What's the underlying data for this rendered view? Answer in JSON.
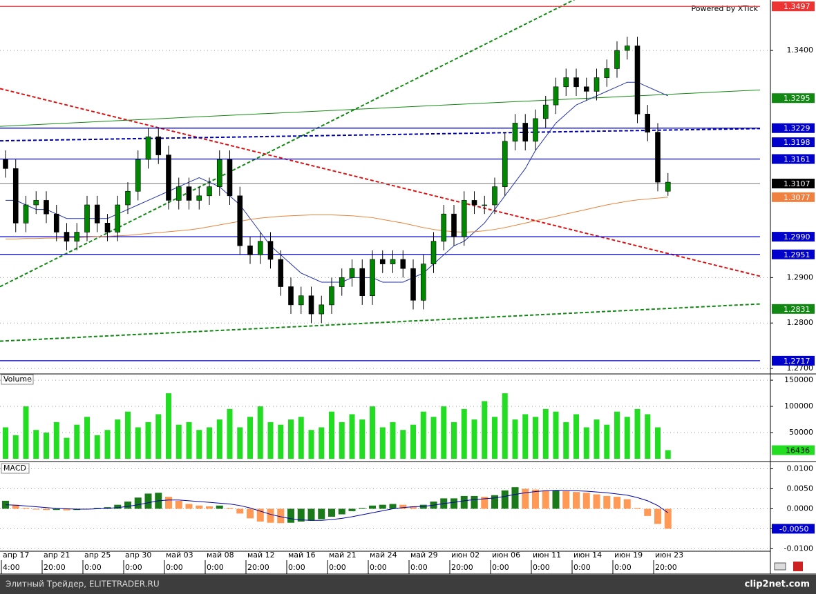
{
  "chart_data": [
    {
      "type": "candlestick",
      "watermark": "Powered by XTick",
      "ylim": [
        1.2691,
        1.3511
      ],
      "yticks": [
        {
          "value": 1.27,
          "label": "1.2700"
        },
        {
          "value": 1.28,
          "label": "1.2800"
        },
        {
          "value": 1.29,
          "label": "1.2900"
        },
        {
          "value": 1.34,
          "label": "1.3400"
        }
      ],
      "grid": true,
      "up_color": "#008800",
      "down_color": "#000000",
      "open": [
        1.316,
        1.314,
        1.302,
        1.306,
        1.307,
        1.304,
        1.3,
        1.298,
        1.3,
        1.306,
        1.302,
        1.3,
        1.306,
        1.309,
        1.316,
        1.321,
        1.317,
        1.307,
        1.31,
        1.307,
        1.308,
        1.31,
        1.316,
        1.308,
        1.297,
        1.295,
        1.298,
        1.294,
        1.288,
        1.284,
        1.286,
        1.282,
        1.284,
        1.288,
        1.29,
        1.292,
        1.286,
        1.294,
        1.293,
        1.294,
        1.292,
        1.285,
        1.293,
        1.298,
        1.304,
        1.299,
        1.307,
        1.306,
        1.306,
        1.31,
        1.32,
        1.324,
        1.32,
        1.325,
        1.328,
        1.332,
        1.334,
        1.332,
        1.331,
        1.334,
        1.336,
        1.34,
        1.341,
        1.326,
        1.322,
        1.309
      ],
      "high": [
        1.318,
        1.316,
        1.308,
        1.309,
        1.309,
        1.306,
        1.302,
        1.302,
        1.308,
        1.308,
        1.304,
        1.308,
        1.311,
        1.318,
        1.323,
        1.323,
        1.319,
        1.312,
        1.312,
        1.31,
        1.312,
        1.318,
        1.318,
        1.31,
        1.299,
        1.3,
        1.3,
        1.296,
        1.29,
        1.288,
        1.288,
        1.286,
        1.29,
        1.292,
        1.294,
        1.294,
        1.296,
        1.296,
        1.296,
        1.296,
        1.294,
        1.295,
        1.3,
        1.306,
        1.306,
        1.309,
        1.309,
        1.308,
        1.312,
        1.322,
        1.326,
        1.326,
        1.327,
        1.33,
        1.334,
        1.336,
        1.336,
        1.334,
        1.336,
        1.338,
        1.342,
        1.343,
        1.343,
        1.328,
        1.324,
        1.313
      ],
      "low": [
        1.312,
        1.3,
        1.3,
        1.304,
        1.302,
        1.298,
        1.296,
        1.296,
        1.298,
        1.3,
        1.298,
        1.298,
        1.304,
        1.307,
        1.314,
        1.315,
        1.305,
        1.305,
        1.305,
        1.305,
        1.306,
        1.308,
        1.306,
        1.295,
        1.293,
        1.293,
        1.292,
        1.286,
        1.282,
        1.282,
        1.28,
        1.28,
        1.282,
        1.286,
        1.288,
        1.284,
        1.284,
        1.291,
        1.291,
        1.29,
        1.283,
        1.283,
        1.291,
        1.296,
        1.297,
        1.297,
        1.304,
        1.304,
        1.304,
        1.308,
        1.318,
        1.318,
        1.318,
        1.323,
        1.326,
        1.33,
        1.33,
        1.329,
        1.329,
        1.332,
        1.334,
        1.338,
        1.324,
        1.32,
        1.309,
        1.308
      ],
      "close": [
        1.314,
        1.302,
        1.306,
        1.307,
        1.304,
        1.3,
        1.298,
        1.3,
        1.306,
        1.302,
        1.3,
        1.306,
        1.309,
        1.316,
        1.321,
        1.317,
        1.307,
        1.31,
        1.307,
        1.308,
        1.31,
        1.316,
        1.308,
        1.297,
        1.295,
        1.298,
        1.294,
        1.288,
        1.284,
        1.286,
        1.282,
        1.284,
        1.288,
        1.29,
        1.292,
        1.286,
        1.294,
        1.293,
        1.294,
        1.292,
        1.285,
        1.293,
        1.298,
        1.304,
        1.299,
        1.307,
        1.306,
        1.306,
        1.31,
        1.32,
        1.324,
        1.32,
        1.325,
        1.328,
        1.332,
        1.334,
        1.332,
        1.331,
        1.334,
        1.336,
        1.34,
        1.341,
        1.326,
        1.322,
        1.311,
        1.311
      ],
      "overlays": [
        {
          "color": "#2233aa",
          "values": [
            1.307,
            1.307,
            1.306,
            1.305,
            1.305,
            1.304,
            1.303,
            1.303,
            1.303,
            1.303,
            1.303,
            1.304,
            1.305,
            1.306,
            1.307,
            1.308,
            1.309,
            1.31,
            1.311,
            1.312,
            1.311,
            1.31,
            1.308,
            1.306,
            1.303,
            1.3,
            1.297,
            1.295,
            1.293,
            1.291,
            1.29,
            1.289,
            1.289,
            1.289,
            1.29,
            1.29,
            1.29,
            1.289,
            1.289,
            1.289,
            1.29,
            1.291,
            1.293,
            1.295,
            1.297,
            1.298,
            1.3,
            1.302,
            1.305,
            1.308,
            1.311,
            1.314,
            1.318,
            1.321,
            1.324,
            1.326,
            1.328,
            1.329,
            1.33,
            1.331,
            1.332,
            1.333,
            1.333,
            1.332,
            1.331,
            1.33
          ]
        },
        {
          "color": "#e8823a",
          "values": [
            1.2985,
            1.2985,
            1.2986,
            1.2986,
            1.2987,
            1.2987,
            1.2988,
            1.2988,
            1.2989,
            1.299,
            1.2991,
            1.2992,
            1.2993,
            1.2995,
            1.2997,
            1.2999,
            1.3001,
            1.3003,
            1.3005,
            1.3008,
            1.3012,
            1.3016,
            1.302,
            1.3024,
            1.3028,
            1.3031,
            1.3033,
            1.3035,
            1.3036,
            1.3037,
            1.3038,
            1.3038,
            1.3038,
            1.3037,
            1.3036,
            1.3034,
            1.3032,
            1.3028,
            1.3024,
            1.302,
            1.3015,
            1.301,
            1.3006,
            1.3003,
            1.3001,
            1.3,
            1.3001,
            1.3003,
            1.3006,
            1.301,
            1.3015,
            1.302,
            1.3025,
            1.303,
            1.3035,
            1.304,
            1.3045,
            1.305,
            1.3055,
            1.306,
            1.3064,
            1.3068,
            1.3071,
            1.3073,
            1.3075,
            1.3077
          ]
        }
      ],
      "trendlines": [
        {
          "color": "#118811",
          "dash": true,
          "start": 1.288,
          "end": 1.3716
        },
        {
          "color": "#dd1111",
          "dash": true,
          "start": 1.3316,
          "end": 1.2903
        },
        {
          "color": "#118811",
          "dash": true,
          "start": 1.276,
          "end": 1.2842
        },
        {
          "color": "#118811",
          "dash": false,
          "start": 1.3233,
          "end": 1.3313
        },
        {
          "color": "#0000aa",
          "dash": true,
          "start": 1.3201,
          "end": 1.3228
        }
      ],
      "levels": [
        {
          "value": 1.3497,
          "color": "#ee3333",
          "line": true
        },
        {
          "value": 1.3295,
          "color": "#118811",
          "line": false
        },
        {
          "value": 1.3229,
          "color": "#0000cc",
          "line": true
        },
        {
          "value": 1.3198,
          "color": "#0000cc",
          "line": false
        },
        {
          "value": 1.3161,
          "color": "#0000cc",
          "line": true
        },
        {
          "value": 1.3107,
          "color": "#000000",
          "line": true
        },
        {
          "value": 1.3077,
          "color": "#f08040",
          "line": false
        },
        {
          "value": 1.299,
          "label": "1.2990",
          "color": "#0000cc",
          "line": true
        },
        {
          "value": 1.2951,
          "color": "#0000cc",
          "line": true
        },
        {
          "value": 1.2831,
          "color": "#118811",
          "line": false
        },
        {
          "value": 1.2717,
          "color": "#0000cc",
          "line": true
        }
      ]
    },
    {
      "type": "bar",
      "title": "Volume",
      "color": "#22dd22",
      "ylim": [
        0,
        158000
      ],
      "yticks": [
        50000,
        100000,
        150000
      ],
      "grid": true,
      "values": [
        60000,
        45000,
        100000,
        55000,
        50000,
        70000,
        40000,
        65000,
        80000,
        45000,
        55000,
        75000,
        90000,
        60000,
        70000,
        85000,
        125000,
        65000,
        70000,
        55000,
        60000,
        75000,
        95000,
        60000,
        80000,
        100000,
        70000,
        65000,
        75000,
        80000,
        55000,
        60000,
        90000,
        70000,
        85000,
        75000,
        100000,
        60000,
        70000,
        55000,
        65000,
        90000,
        80000,
        100000,
        70000,
        95000,
        75000,
        110000,
        80000,
        125000,
        75000,
        85000,
        80000,
        95000,
        90000,
        70000,
        85000,
        60000,
        75000,
        65000,
        90000,
        80000,
        95000,
        85000,
        60000,
        16436
      ]
    },
    {
      "type": "macd",
      "title": "MACD",
      "up_color": "#1a7a1a",
      "down_color": "#ff9955",
      "signal_color": "#0000aa",
      "ylim": [
        -0.0108,
        0.0113
      ],
      "yticks": [
        {
          "value": 0.01,
          "label": "0.0100"
        },
        {
          "value": 0.005,
          "label": "0.0050"
        },
        {
          "value": 0,
          "label": "0.0000"
        },
        {
          "value": -0.005,
          "label": "-0.0050"
        },
        {
          "value": -0.01,
          "label": "-0.0100"
        }
      ],
      "grid": true,
      "values": [
        0.002,
        0.001,
        0.0002,
        -0.0002,
        -0.0003,
        -0.0003,
        -0.0004,
        -0.0003,
        0.0,
        0.0002,
        0.0004,
        0.001,
        0.0018,
        0.0028,
        0.0038,
        0.004,
        0.003,
        0.002,
        0.0012,
        0.0008,
        0.0006,
        0.0008,
        0.0002,
        -0.0012,
        -0.0024,
        -0.0032,
        -0.0035,
        -0.0036,
        -0.0035,
        -0.0032,
        -0.003,
        -0.0026,
        -0.002,
        -0.0014,
        -0.0006,
        0.0002,
        0.0008,
        0.001,
        0.0012,
        0.001,
        0.0006,
        0.001,
        0.0018,
        0.0026,
        0.0026,
        0.0032,
        0.0032,
        0.003,
        0.0034,
        0.0046,
        0.0054,
        0.005,
        0.0048,
        0.0046,
        0.0046,
        0.0044,
        0.0042,
        0.004,
        0.0036,
        0.0032,
        0.003,
        0.0024,
        0.0002,
        -0.0018,
        -0.0038,
        -0.005
      ],
      "signal": [
        0.001,
        0.0009,
        0.0007,
        0.0005,
        0.0003,
        0.0001,
        0.0,
        -0.0001,
        -0.0001,
        0.0,
        0.0001,
        0.0003,
        0.0006,
        0.001,
        0.0015,
        0.002,
        0.0022,
        0.0022,
        0.002,
        0.0018,
        0.0016,
        0.0014,
        0.0012,
        0.0008,
        0.0002,
        -0.0006,
        -0.0014,
        -0.002,
        -0.0025,
        -0.0028,
        -0.0029,
        -0.0029,
        -0.0027,
        -0.0024,
        -0.002,
        -0.0015,
        -0.001,
        -0.0005,
        0.0,
        0.0003,
        0.0005,
        0.0006,
        0.0009,
        0.0013,
        0.0016,
        0.002,
        0.0023,
        0.0025,
        0.0027,
        0.0031,
        0.0036,
        0.004,
        0.0043,
        0.0045,
        0.0046,
        0.0046,
        0.0045,
        0.0044,
        0.0042,
        0.004,
        0.0037,
        0.0034,
        0.0028,
        0.002,
        0.0008,
        -0.001
      ],
      "current": {
        "value": -0.005,
        "label": "-0.0050"
      },
      "categories": [
        "апр 17",
        null,
        null,
        null,
        "апр 21",
        null,
        null,
        null,
        "апр 25",
        null,
        null,
        null,
        "апр 30",
        null,
        null,
        null,
        "май 03",
        null,
        null,
        null,
        "май 08",
        null,
        null,
        null,
        "май 12",
        null,
        null,
        null,
        "май 16",
        null,
        null,
        null,
        "май 21",
        null,
        null,
        null,
        "май 24",
        null,
        null,
        null,
        "май 29",
        null,
        null,
        null,
        "июн 02",
        null,
        null,
        null,
        "июн 06",
        null,
        null,
        null,
        "июн 11",
        null,
        null,
        null,
        "июн 14",
        null,
        null,
        null,
        "июн 19",
        null,
        null,
        null,
        "июн 23",
        null
      ],
      "times": [
        "4:00",
        null,
        null,
        null,
        "20:00",
        null,
        null,
        null,
        "0:00",
        null,
        null,
        null,
        "0:00",
        null,
        null,
        null,
        "0:00",
        null,
        null,
        null,
        "0:00",
        null,
        null,
        null,
        "20:00",
        null,
        null,
        null,
        "0:00",
        null,
        null,
        null,
        "0:00",
        null,
        null,
        null,
        "0:00",
        null,
        null,
        null,
        "0:00",
        null,
        null,
        null,
        "20:00",
        null,
        null,
        null,
        "0:00",
        null,
        null,
        null,
        "0:00",
        null,
        null,
        null,
        "0:00",
        null,
        null,
        null,
        "0:00",
        null,
        null,
        null,
        "20:00",
        null
      ]
    }
  ],
  "footer": {
    "left": "Элитный Трейдер, ELITETRADER.RU",
    "right": "clip2net.com"
  }
}
